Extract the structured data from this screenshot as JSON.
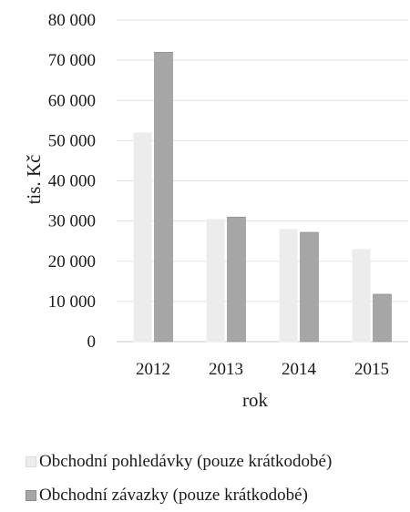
{
  "chart_data": {
    "type": "bar",
    "categories": [
      "2012",
      "2013",
      "2014",
      "2015"
    ],
    "series": [
      {
        "name": "Obchodní pohledávky (pouze krátkodobé)",
        "values": [
          52000,
          30500,
          28000,
          23000
        ],
        "color": "#ececec"
      },
      {
        "name": "Obchodní závazky (pouze krátkodobé)",
        "values": [
          72000,
          31000,
          27200,
          11800
        ],
        "color": "#a6a6a6"
      }
    ],
    "xlabel": "rok",
    "ylabel": "tis. Kč",
    "ylim": [
      0,
      80000
    ],
    "yticks": [
      "0",
      "10 000",
      "20 000",
      "30 000",
      "40 000",
      "50 000",
      "60 000",
      "70 000",
      "80 000"
    ],
    "grid": true,
    "legend_position": "bottom"
  }
}
